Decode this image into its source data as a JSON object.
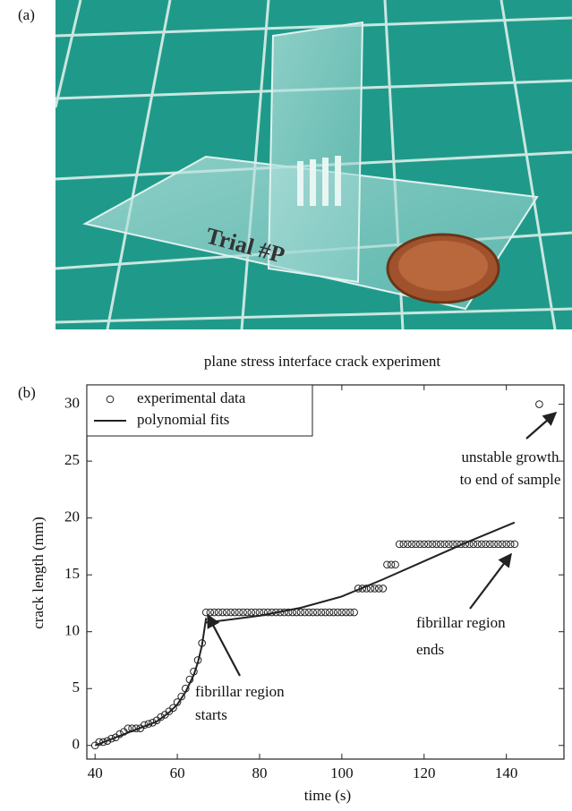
{
  "panel_a_label": "(a)",
  "panel_b_label": "(b)",
  "chart_data": {
    "type": "scatter",
    "title": "plane stress interface crack experiment",
    "xlabel": "time (s)",
    "ylabel": "crack length (mm)",
    "xlim": [
      38,
      154
    ],
    "ylim": [
      -1.2,
      31.7
    ],
    "xticks": [
      40,
      60,
      80,
      100,
      120,
      140
    ],
    "yticks": [
      0,
      5,
      10,
      15,
      20,
      25,
      30
    ],
    "grid": false,
    "legend": "upper left",
    "series": [
      {
        "name": "experimental data",
        "marker": "circle",
        "color": "#222222",
        "x": [
          40,
          41,
          42,
          43,
          44,
          45,
          46,
          47,
          48,
          49,
          50,
          51,
          52,
          53,
          54,
          55,
          56,
          57,
          58,
          59,
          60,
          61,
          62,
          63,
          64,
          65,
          66,
          67,
          68,
          69,
          70,
          71,
          72,
          73,
          74,
          75,
          76,
          77,
          78,
          79,
          80,
          81,
          82,
          83,
          84,
          85,
          86,
          87,
          88,
          89,
          90,
          91,
          92,
          93,
          94,
          95,
          96,
          97,
          98,
          99,
          100,
          101,
          102,
          103,
          104,
          105,
          106,
          107,
          108,
          109,
          110,
          111,
          112,
          113,
          114,
          115,
          116,
          117,
          118,
          119,
          120,
          121,
          122,
          123,
          124,
          125,
          126,
          127,
          128,
          129,
          130,
          131,
          132,
          133,
          134,
          135,
          136,
          137,
          138,
          139,
          140,
          141,
          142,
          148
        ],
        "values": [
          0,
          0.3,
          0.3,
          0.4,
          0.6,
          0.7,
          1.0,
          1.2,
          1.5,
          1.5,
          1.5,
          1.5,
          1.8,
          1.9,
          2.0,
          2.2,
          2.5,
          2.7,
          3.0,
          3.3,
          3.8,
          4.3,
          5.0,
          5.8,
          6.5,
          7.5,
          9.0,
          11.7,
          11.7,
          11.7,
          11.7,
          11.7,
          11.7,
          11.7,
          11.7,
          11.7,
          11.7,
          11.7,
          11.7,
          11.7,
          11.7,
          11.7,
          11.7,
          11.7,
          11.7,
          11.7,
          11.7,
          11.7,
          11.7,
          11.7,
          11.7,
          11.7,
          11.7,
          11.7,
          11.7,
          11.7,
          11.7,
          11.7,
          11.7,
          11.7,
          11.7,
          11.7,
          11.7,
          11.7,
          13.8,
          13.8,
          13.8,
          13.8,
          13.8,
          13.8,
          13.8,
          15.9,
          15.9,
          15.9,
          17.7,
          17.7,
          17.7,
          17.7,
          17.7,
          17.7,
          17.7,
          17.7,
          17.7,
          17.7,
          17.7,
          17.7,
          17.7,
          17.7,
          17.7,
          17.7,
          17.7,
          17.7,
          17.7,
          17.7,
          17.7,
          17.7,
          17.7,
          17.7,
          17.7,
          17.7,
          17.7,
          17.7,
          17.7,
          30
        ]
      },
      {
        "name": "polynomial fits",
        "style": "line",
        "color": "#222222",
        "x": [
          40,
          45,
          50,
          55,
          58,
          60,
          62,
          64,
          65,
          66,
          67,
          null,
          67,
          80,
          90,
          100,
          110,
          120,
          130,
          142
        ],
        "values": [
          0,
          0.7,
          1.4,
          2.1,
          2.9,
          3.6,
          4.7,
          6.2,
          7.3,
          8.8,
          11.2,
          null,
          10.8,
          11.4,
          12.1,
          13.1,
          14.6,
          16.2,
          17.8,
          19.6
        ]
      }
    ],
    "annotations": [
      {
        "lines": [
          "unstable growth",
          "to end of sample"
        ]
      },
      {
        "lines": [
          "fibrillar region",
          "starts"
        ]
      },
      {
        "lines": [
          "fibrillar region",
          "ends"
        ]
      }
    ]
  }
}
